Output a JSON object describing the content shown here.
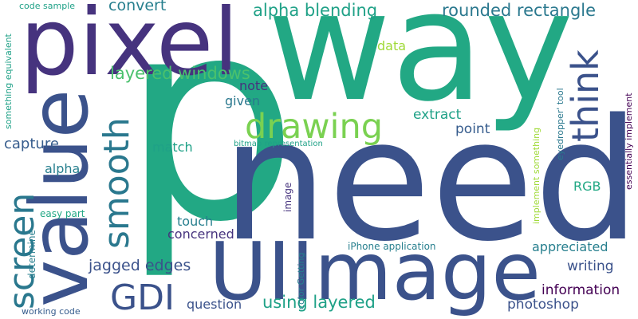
{
  "palette": {
    "c1": "#440154",
    "c2": "#46337e",
    "c3": "#365c8d",
    "c4": "#277f8e",
    "c5": "#1fa187",
    "c6": "#4ac16d",
    "c7": "#a0da39",
    "c8": "#3b528b",
    "c9": "#2a788e",
    "c10": "#22a884",
    "c11": "#7ad151",
    "c12": "#fde725"
  },
  "words": {
    "p": "p",
    "need": "need",
    "way": "way",
    "pixel": "pixel",
    "value": "value",
    "uiimage": "UIImage",
    "drawing": "drawing",
    "gdi": "GDI",
    "smooth": "smooth",
    "screen": "screen",
    "think": "think",
    "alpha_blending": "alpha blending",
    "rounded_rectangle": "rounded rectangle",
    "layered_windows": "layered windows",
    "convert": "convert",
    "code_sample": "code sample",
    "data": "data",
    "note": "note",
    "given": "given",
    "extract": "extract",
    "point": "point",
    "capture": "capture",
    "match": "match",
    "bitmap_representation": "bitmap representation",
    "alpha": "alpha",
    "rgb": "RGB",
    "easy_part": "easy part",
    "touch": "touch",
    "concerned": "concerned",
    "jagged_edges": "jagged edges",
    "appreciated": "appreciated",
    "writing": "writing",
    "information": "information",
    "question": "question",
    "using_layered": "using layered",
    "photoshop": "photoshop",
    "working_code": "working code",
    "iphone_application": "iPhone application",
    "something_equivalent": "something equivalent",
    "determine": "determine",
    "color_getting": "color Getting",
    "image": "image",
    "eyedropper_tool": "eyedropper' tool",
    "implement_something": "implement something",
    "essentially_implement": "essentially implement"
  }
}
